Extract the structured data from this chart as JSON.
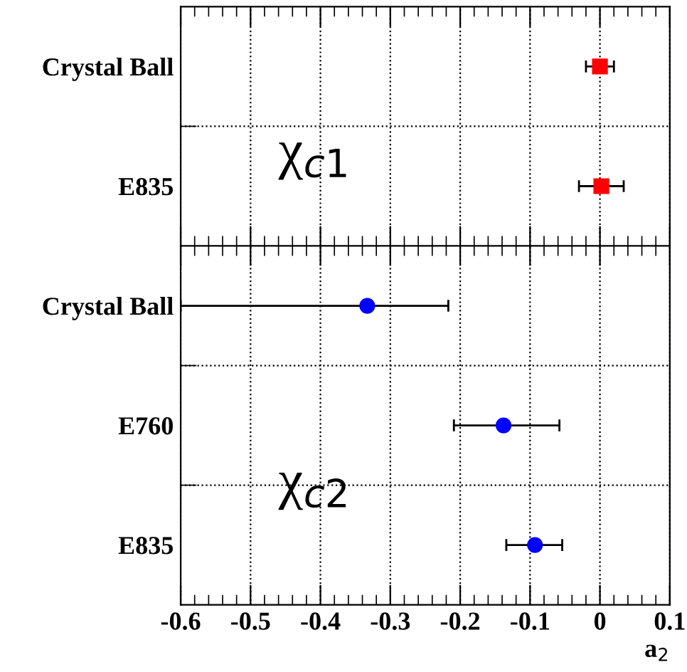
{
  "chart_data": [
    {
      "type": "scatter",
      "orientation": "horizontal",
      "categories": [
        "Crystal Ball",
        "E835"
      ],
      "series": [
        {
          "color": "#ff0000",
          "values": [
            0.0,
            0.002
          ],
          "errors": [
            0.02,
            0.032
          ],
          "marker": "square"
        }
      ],
      "xlim": [
        -0.6,
        0.1
      ],
      "xticks": [
        -0.6,
        -0.5,
        -0.4,
        -0.3,
        -0.2,
        -0.1,
        0,
        0.1
      ],
      "tick_labels": "y",
      "grid": true,
      "annotations": [
        "χ$_{c1}$"
      ]
    },
    {
      "type": "scatter",
      "orientation": "horizontal",
      "categories": [
        "Crystal Ball",
        "E760",
        "E835"
      ],
      "series": [
        {
          "color": "#0000ff",
          "values": [
            -0.333,
            -0.138,
            -0.093
          ],
          "errors": [
            [
              -0.6,
              -0.217
            ],
            [
              -0.209,
              -0.058
            ],
            [
              -0.134,
              -0.054
            ]
          ],
          "marker": "circle"
        }
      ],
      "xlim": [
        -0.6,
        0.1
      ],
      "xticks": [
        -0.6,
        -0.5,
        -0.4,
        -0.3,
        -0.2,
        -0.1,
        0,
        0.1
      ],
      "xlabel": "a$_{2}$",
      "grid": true,
      "annotations": [
        "χ$_{c2}$"
      ]
    }
  ]
}
